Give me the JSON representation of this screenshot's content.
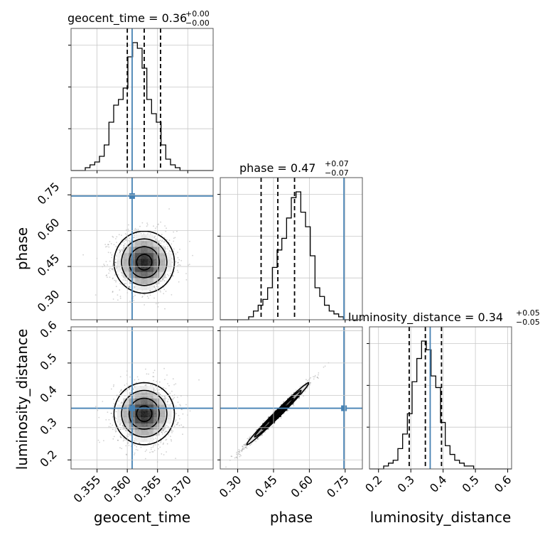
{
  "chart_data": {
    "type": "corner",
    "parameters": [
      "geocent_time",
      "phase",
      "luminosity_distance"
    ],
    "truth_color": "#4682b4",
    "titles": [
      {
        "text": "geocent_time = 0.36",
        "plus": "+0.00",
        "minus": "−0.00"
      },
      {
        "text": "phase = 0.47",
        "plus": "+0.07",
        "minus": "−0.07"
      },
      {
        "text": "luminosity_distance = 0.34",
        "plus": "+0.05",
        "minus": "−0.05"
      }
    ],
    "ranges": {
      "geocent_time": [
        0.3507,
        0.3742
      ],
      "phase": [
        0.227,
        0.822
      ],
      "luminosity_distance": [
        0.172,
        0.612
      ]
    },
    "truths": {
      "geocent_time": 0.3608,
      "phase": 0.745,
      "luminosity_distance": 0.36
    },
    "quantiles": {
      "geocent_time": [
        0.36,
        0.3628,
        0.3655
      ],
      "phase": [
        0.398,
        0.468,
        0.538
      ],
      "luminosity_distance": [
        0.295,
        0.345,
        0.395
      ]
    },
    "ticks": {
      "geocent_time": {
        "values": [
          0.355,
          0.36,
          0.365,
          0.37
        ],
        "labels": [
          "0.355",
          "0.360",
          "0.365",
          "0.370"
        ]
      },
      "phase": {
        "values": [
          0.3,
          0.45,
          0.6,
          0.75
        ],
        "labels": [
          "0.30",
          "0.45",
          "0.60",
          "0.75"
        ]
      },
      "luminosity_distance": {
        "values": [
          0.2,
          0.3,
          0.4,
          0.5,
          0.6
        ],
        "labels": [
          "0.2",
          "0.3",
          "0.4",
          "0.5",
          "0.6"
        ]
      }
    },
    "histograms": {
      "geocent_time": [
        0,
        0,
        0,
        1,
        2,
        3,
        5,
        9,
        17,
        23,
        25,
        29,
        40,
        45,
        43,
        36,
        25,
        20,
        17,
        9,
        4,
        2,
        1,
        0,
        0,
        0,
        0,
        0,
        0,
        0
      ],
      "phase": [
        0,
        0,
        0,
        0,
        0,
        0,
        1,
        3,
        5,
        7,
        11,
        18,
        24,
        28,
        35,
        42,
        44,
        37,
        32,
        22,
        11,
        8,
        5,
        3,
        2,
        1,
        0,
        0,
        0,
        0
      ],
      "luminosity_distance": [
        0,
        0,
        0,
        1,
        2,
        3,
        7,
        12,
        19,
        30,
        38,
        44,
        41,
        32,
        28,
        16,
        8,
        5,
        3,
        2,
        1,
        1,
        0,
        0,
        0,
        0,
        0,
        0,
        0,
        0
      ]
    },
    "sample_means": {
      "geocent_time": 0.3628,
      "phase": 0.468,
      "luminosity_distance": 0.343
    },
    "sample_sigmas": {
      "geocent_time": 0.0025,
      "phase": 0.065,
      "luminosity_distance": 0.048
    },
    "correlations": {
      "phase|geocent_time": 0.0,
      "luminosity_distance|geocent_time": 0.0,
      "luminosity_distance|phase": 0.99
    }
  }
}
